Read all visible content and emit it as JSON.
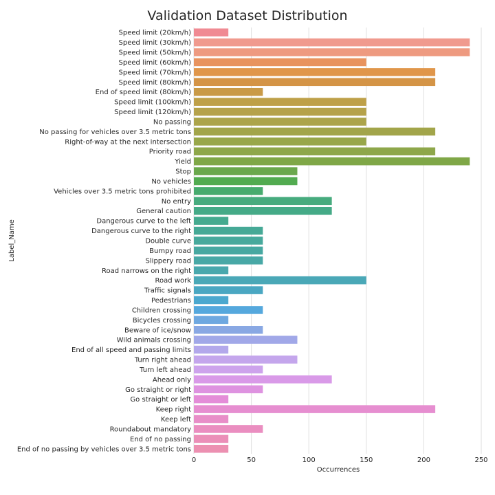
{
  "chart_data": {
    "type": "bar",
    "orientation": "horizontal",
    "title": "Validation Dataset Distribution",
    "xlabel": "Occurrences",
    "ylabel": "Label_Name",
    "xlim": [
      0,
      250
    ],
    "xticks": [
      0,
      50,
      100,
      150,
      200,
      250
    ],
    "grid": "vertical",
    "categories": [
      "Speed limit (20km/h)",
      "Speed limit (30km/h)",
      "Speed limit (50km/h)",
      "Speed limit (60km/h)",
      "Speed limit (70km/h)",
      "Speed limit (80km/h)",
      "End of speed limit (80km/h)",
      "Speed limit (100km/h)",
      "Speed limit (120km/h)",
      "No passing",
      "No passing for vehicles over 3.5 metric tons",
      "Right-of-way at the next intersection",
      "Priority road",
      "Yield",
      "Stop",
      "No vehicles",
      "Vehicles over 3.5 metric tons prohibited",
      "No entry",
      "General caution",
      "Dangerous curve to the left",
      "Dangerous curve to the right",
      "Double curve",
      "Bumpy road",
      "Slippery road",
      "Road narrows on the right",
      "Road work",
      "Traffic signals",
      "Pedestrians",
      "Children crossing",
      "Bicycles crossing",
      "Beware of ice/snow",
      "Wild animals crossing",
      "End of all speed and passing limits",
      "Turn right ahead",
      "Turn left ahead",
      "Ahead only",
      "Go straight or right",
      "Go straight or left",
      "Keep right",
      "Keep left",
      "Roundabout mandatory",
      "End of no passing",
      "End of no passing by vehicles over 3.5 metric tons"
    ],
    "values": [
      30,
      240,
      240,
      150,
      210,
      210,
      60,
      150,
      150,
      150,
      210,
      150,
      210,
      240,
      90,
      90,
      60,
      120,
      120,
      30,
      60,
      60,
      60,
      60,
      30,
      150,
      60,
      30,
      60,
      30,
      60,
      90,
      30,
      90,
      60,
      120,
      60,
      30,
      210,
      30,
      60,
      30,
      30
    ],
    "colors": [
      "#f08a93",
      "#f09a8e",
      "#ee9a80",
      "#e8935e",
      "#e0964a",
      "#d49446",
      "#c99a47",
      "#bea048",
      "#b5a24a",
      "#aca44a",
      "#a2a54a",
      "#98a74a",
      "#8ea74a",
      "#7fa747",
      "#6aa84c",
      "#52ab50",
      "#47ab6e",
      "#47ab7e",
      "#45aa87",
      "#45aa8f",
      "#46a996",
      "#47a99c",
      "#47a8a1",
      "#48a8a6",
      "#49a8ad",
      "#4aa8b7",
      "#4aa7c2",
      "#4ba8cf",
      "#55a8dd",
      "#6ea8e0",
      "#89a8e3",
      "#a1a8e8",
      "#b3a8eb",
      "#c4a6ec",
      "#cda3ec",
      "#d99ae8",
      "#de93e0",
      "#e48dd8",
      "#e68ed0",
      "#e88ec8",
      "#ea8ec0",
      "#eb8fb8",
      "#ec90b1"
    ]
  }
}
